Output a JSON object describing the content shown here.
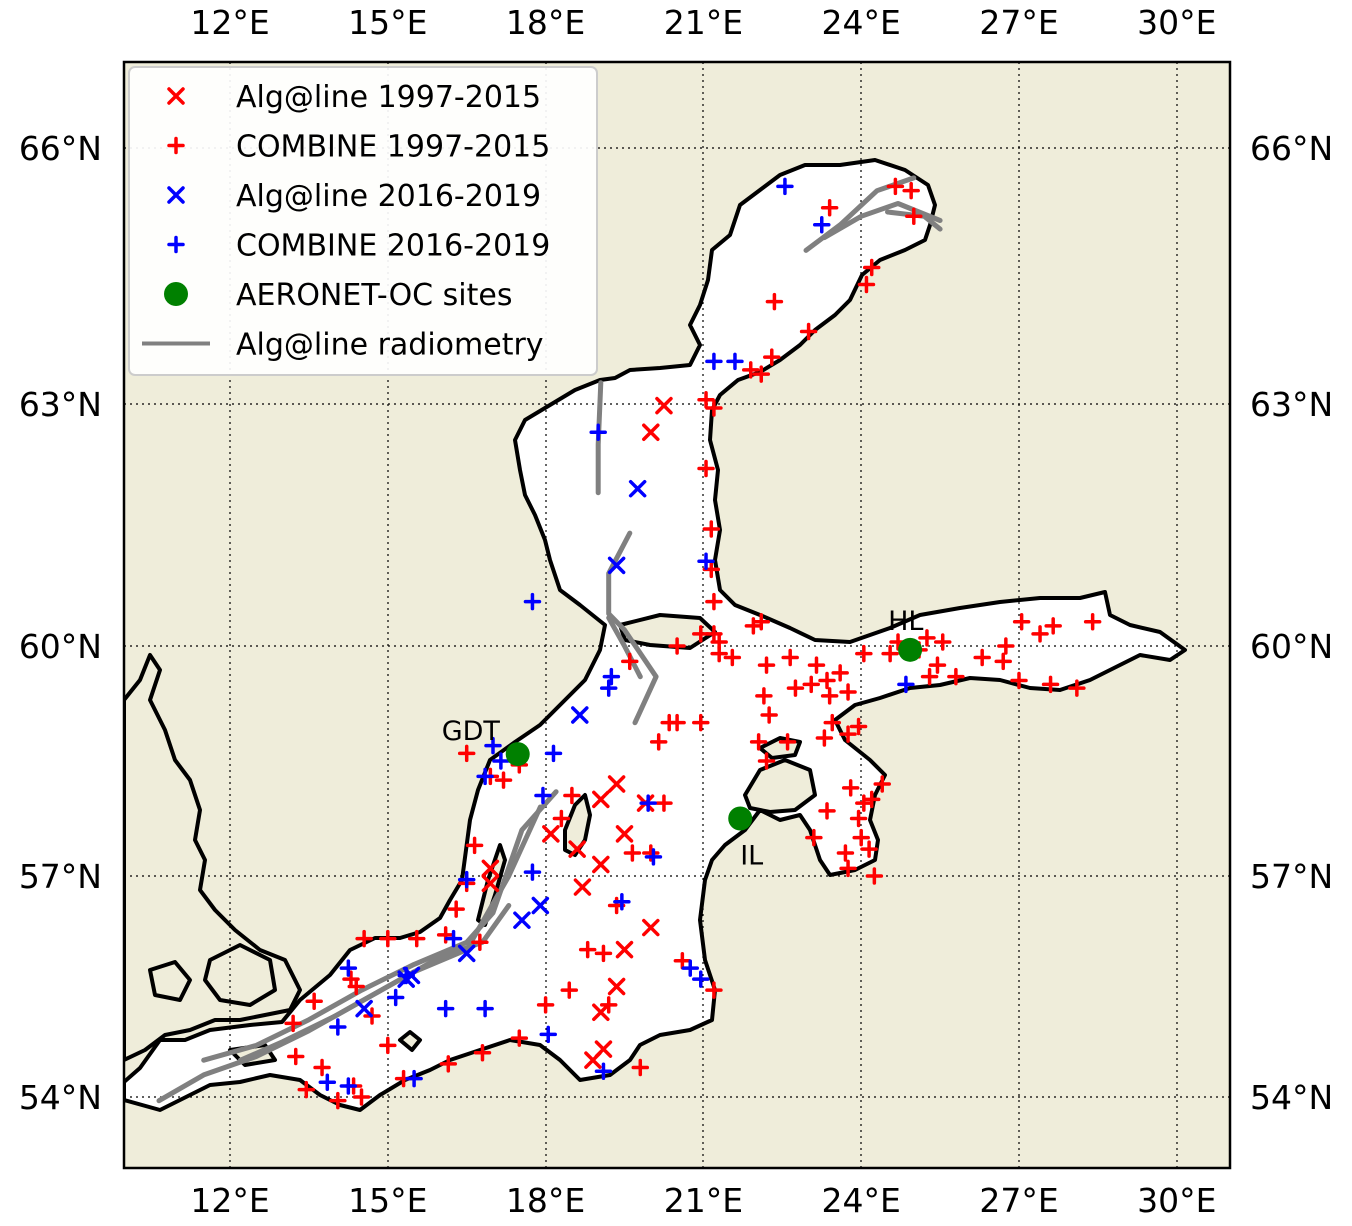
{
  "map": {
    "lon_range": [
      10.0,
      31.0
    ],
    "lat_range": [
      53.0,
      67.0
    ],
    "background_land_color": "#efedda",
    "water_color": "#ffffff",
    "coastline_color": "#000000",
    "grid": "dotted",
    "lon_ticks": [
      {
        "value": 12,
        "label": "12°E"
      },
      {
        "value": 15,
        "label": "15°E"
      },
      {
        "value": 18,
        "label": "18°E"
      },
      {
        "value": 21,
        "label": "21°E"
      },
      {
        "value": 24,
        "label": "24°E"
      },
      {
        "value": 27,
        "label": "27°E"
      },
      {
        "value": 30,
        "label": "30°E"
      }
    ],
    "lat_ticks": [
      {
        "value": 66,
        "label": "66°N"
      },
      {
        "value": 63,
        "label": "63°N"
      },
      {
        "value": 60,
        "label": "60°N"
      },
      {
        "value": 57,
        "label": "57°N"
      },
      {
        "value": 54,
        "label": "54°N"
      }
    ]
  },
  "legend": {
    "placement": "top-left",
    "entries": [
      {
        "label": "Alg@line 1997-2015",
        "marker": "x",
        "color": "#ff0000"
      },
      {
        "label": "COMBINE 1997-2015",
        "marker": "+",
        "color": "#ff0000"
      },
      {
        "label": "Alg@line 2016-2019",
        "marker": "x",
        "color": "#0000ff"
      },
      {
        "label": "COMBINE 2016-2019",
        "marker": "+",
        "color": "#0000ff"
      },
      {
        "label": "AERONET-OC sites",
        "marker": "circle",
        "color": "#008000"
      },
      {
        "label": "Alg@line radiometry",
        "marker": "line",
        "color": "#808080"
      }
    ]
  },
  "sites": [
    {
      "name": "HL",
      "lon": 24.93,
      "lat": 59.95
    },
    {
      "name": "GDT",
      "lon": 17.47,
      "lat": 58.59
    },
    {
      "name": "IL",
      "lon": 21.7,
      "lat": 57.75
    }
  ],
  "chart_data": {
    "type": "scatter",
    "series": [
      {
        "name": "Alg@line 1997-2015",
        "marker": "x",
        "color": "#ff0000",
        "points": [
          [
            20.25,
            62.98
          ],
          [
            20.0,
            62.65
          ],
          [
            19.05,
            58.0
          ],
          [
            19.35,
            58.2
          ],
          [
            18.1,
            57.55
          ],
          [
            19.5,
            57.55
          ],
          [
            18.6,
            57.35
          ],
          [
            19.05,
            57.15
          ],
          [
            18.7,
            56.85
          ],
          [
            19.9,
            57.95
          ],
          [
            20.0,
            56.3
          ],
          [
            19.5,
            56.0
          ],
          [
            19.35,
            55.5
          ],
          [
            19.05,
            55.15
          ],
          [
            19.1,
            54.65
          ],
          [
            18.9,
            54.5
          ],
          [
            16.95,
            57.1
          ],
          [
            16.95,
            56.9
          ]
        ]
      },
      {
        "name": "COMBINE 1997-2015",
        "marker": "+",
        "color": "#ff0000",
        "points": [
          [
            23.4,
            65.3
          ],
          [
            24.65,
            65.55
          ],
          [
            24.95,
            65.5
          ],
          [
            25.0,
            65.2
          ],
          [
            24.1,
            64.4
          ],
          [
            24.2,
            64.6
          ],
          [
            22.35,
            64.2
          ],
          [
            23.0,
            63.85
          ],
          [
            22.3,
            63.55
          ],
          [
            21.9,
            63.4
          ],
          [
            22.1,
            63.35
          ],
          [
            21.05,
            63.05
          ],
          [
            21.2,
            62.95
          ],
          [
            21.05,
            62.2
          ],
          [
            21.15,
            61.45
          ],
          [
            21.15,
            60.95
          ],
          [
            21.2,
            60.55
          ],
          [
            20.95,
            60.15
          ],
          [
            21.2,
            60.15
          ],
          [
            20.5,
            60.0
          ],
          [
            21.95,
            60.25
          ],
          [
            22.1,
            60.3
          ],
          [
            21.55,
            59.85
          ],
          [
            21.3,
            60.05
          ],
          [
            22.65,
            59.85
          ],
          [
            23.15,
            59.75
          ],
          [
            23.6,
            59.65
          ],
          [
            23.35,
            59.55
          ],
          [
            23.05,
            59.5
          ],
          [
            22.75,
            59.45
          ],
          [
            23.75,
            59.4
          ],
          [
            23.4,
            59.35
          ],
          [
            22.15,
            59.35
          ],
          [
            22.25,
            59.1
          ],
          [
            23.45,
            59.0
          ],
          [
            23.95,
            58.95
          ],
          [
            22.05,
            58.75
          ],
          [
            22.2,
            58.5
          ],
          [
            22.6,
            58.75
          ],
          [
            23.3,
            58.8
          ],
          [
            23.75,
            58.85
          ],
          [
            24.4,
            58.2
          ],
          [
            24.2,
            58.0
          ],
          [
            24.05,
            57.95
          ],
          [
            23.95,
            57.75
          ],
          [
            24.0,
            57.5
          ],
          [
            23.7,
            57.3
          ],
          [
            24.15,
            57.35
          ],
          [
            23.75,
            57.1
          ],
          [
            24.25,
            57.0
          ],
          [
            23.1,
            57.5
          ],
          [
            23.35,
            57.85
          ],
          [
            23.8,
            58.15
          ],
          [
            24.55,
            59.9
          ],
          [
            24.7,
            60.05
          ],
          [
            25.25,
            60.1
          ],
          [
            25.45,
            59.75
          ],
          [
            25.3,
            59.6
          ],
          [
            25.8,
            59.6
          ],
          [
            26.3,
            59.85
          ],
          [
            26.75,
            60.0
          ],
          [
            27.05,
            60.3
          ],
          [
            27.4,
            60.15
          ],
          [
            27.65,
            60.25
          ],
          [
            28.4,
            60.3
          ],
          [
            26.7,
            59.8
          ],
          [
            27.0,
            59.55
          ],
          [
            27.6,
            59.5
          ],
          [
            28.1,
            59.45
          ],
          [
            25.1,
            59.95
          ],
          [
            25.55,
            60.05
          ],
          [
            24.05,
            59.9
          ],
          [
            20.35,
            59.0
          ],
          [
            20.15,
            58.75
          ],
          [
            20.95,
            59.0
          ],
          [
            20.25,
            57.95
          ],
          [
            19.65,
            57.3
          ],
          [
            19.35,
            56.6
          ],
          [
            18.8,
            56.0
          ],
          [
            19.1,
            55.95
          ],
          [
            20.6,
            55.85
          ],
          [
            21.2,
            55.45
          ],
          [
            18.45,
            55.45
          ],
          [
            18.0,
            55.25
          ],
          [
            17.5,
            54.8
          ],
          [
            16.8,
            54.6
          ],
          [
            16.15,
            54.45
          ],
          [
            15.3,
            54.25
          ],
          [
            14.35,
            54.15
          ],
          [
            13.75,
            54.4
          ],
          [
            13.25,
            54.55
          ],
          [
            13.45,
            54.1
          ],
          [
            14.05,
            53.95
          ],
          [
            14.5,
            54.0
          ],
          [
            15.0,
            54.7
          ],
          [
            14.7,
            55.1
          ],
          [
            13.6,
            55.3
          ],
          [
            14.3,
            55.6
          ],
          [
            14.4,
            55.5
          ],
          [
            14.55,
            56.15
          ],
          [
            15.55,
            56.15
          ],
          [
            16.1,
            56.2
          ],
          [
            16.3,
            56.55
          ],
          [
            16.75,
            56.1
          ],
          [
            16.5,
            56.9
          ],
          [
            16.65,
            57.4
          ],
          [
            17.2,
            58.25
          ],
          [
            17.5,
            58.45
          ],
          [
            16.5,
            58.6
          ],
          [
            16.95,
            58.3
          ],
          [
            19.6,
            59.8
          ],
          [
            20.5,
            59.0
          ],
          [
            18.5,
            58.05
          ],
          [
            18.3,
            57.75
          ],
          [
            21.3,
            59.9
          ],
          [
            22.2,
            59.75
          ],
          [
            15.0,
            56.15
          ],
          [
            13.2,
            55.0
          ],
          [
            20.0,
            57.3
          ],
          [
            19.2,
            55.25
          ],
          [
            19.8,
            54.4
          ]
        ]
      },
      {
        "name": "Alg@line 2016-2019",
        "marker": "x",
        "color": "#0000ff",
        "points": [
          [
            19.75,
            61.95
          ],
          [
            19.35,
            61.0
          ],
          [
            18.65,
            59.1
          ],
          [
            16.5,
            55.95
          ],
          [
            17.55,
            56.4
          ],
          [
            17.9,
            56.6
          ],
          [
            15.35,
            55.6
          ],
          [
            15.45,
            55.65
          ],
          [
            14.55,
            55.2
          ]
        ]
      },
      {
        "name": "COMBINE 2016-2019",
        "marker": "+",
        "color": "#0000ff",
        "points": [
          [
            22.55,
            65.55
          ],
          [
            23.25,
            65.1
          ],
          [
            21.2,
            63.5
          ],
          [
            21.6,
            63.5
          ],
          [
            19.0,
            62.65
          ],
          [
            21.05,
            61.05
          ],
          [
            17.75,
            60.55
          ],
          [
            19.25,
            59.6
          ],
          [
            19.2,
            59.45
          ],
          [
            17.0,
            58.7
          ],
          [
            17.15,
            58.5
          ],
          [
            16.85,
            58.3
          ],
          [
            18.15,
            58.6
          ],
          [
            17.95,
            58.05
          ],
          [
            19.95,
            57.95
          ],
          [
            20.05,
            57.25
          ],
          [
            17.75,
            57.05
          ],
          [
            16.5,
            56.95
          ],
          [
            19.45,
            56.65
          ],
          [
            20.75,
            55.75
          ],
          [
            20.95,
            55.6
          ],
          [
            16.25,
            56.15
          ],
          [
            15.35,
            55.65
          ],
          [
            15.15,
            55.35
          ],
          [
            16.1,
            55.2
          ],
          [
            16.85,
            55.2
          ],
          [
            15.5,
            54.25
          ],
          [
            14.25,
            54.15
          ],
          [
            14.25,
            55.75
          ],
          [
            13.85,
            54.2
          ],
          [
            19.1,
            54.35
          ],
          [
            14.05,
            54.95
          ],
          [
            18.05,
            54.85
          ],
          [
            24.85,
            59.5
          ]
        ]
      },
      {
        "name": "AERONET-OC sites",
        "marker": "circle",
        "color": "#008000",
        "points": [
          [
            24.93,
            59.95
          ],
          [
            17.47,
            58.59
          ],
          [
            21.7,
            57.75
          ]
        ]
      }
    ],
    "lines": [
      {
        "name": "Alg@line radiometry",
        "color": "#808080",
        "points": [
          [
            10.65,
            53.95
          ],
          [
            11.5,
            54.3
          ],
          [
            12.5,
            54.55
          ],
          [
            13.5,
            54.9
          ],
          [
            14.5,
            55.3
          ],
          [
            15.5,
            55.7
          ],
          [
            16.5,
            56.0
          ],
          [
            17.3,
            57.0
          ],
          [
            17.9,
            57.9
          ]
        ]
      },
      {
        "name": "Alg@line radiometry",
        "color": "#808080",
        "points": [
          [
            11.5,
            54.5
          ],
          [
            12.5,
            54.7
          ],
          [
            13.5,
            55.05
          ],
          [
            14.5,
            55.45
          ],
          [
            15.5,
            55.8
          ],
          [
            16.5,
            56.1
          ],
          [
            17.0,
            56.5
          ],
          [
            17.55,
            57.6
          ],
          [
            18.2,
            58.1
          ]
        ]
      },
      {
        "name": "Alg@line radiometry",
        "color": "#808080",
        "points": [
          [
            12.2,
            54.5
          ],
          [
            13.0,
            54.75
          ],
          [
            14.0,
            55.1
          ],
          [
            15.0,
            55.5
          ],
          [
            16.0,
            55.9
          ],
          [
            16.8,
            56.1
          ],
          [
            17.3,
            56.6
          ]
        ]
      },
      {
        "name": "Alg@line radiometry",
        "color": "#808080",
        "points": [
          [
            19.0,
            61.9
          ],
          [
            19.0,
            62.5
          ],
          [
            19.05,
            63.25
          ]
        ]
      },
      {
        "name": "Alg@line radiometry",
        "color": "#808080",
        "points": [
          [
            19.7,
            59.0
          ],
          [
            20.1,
            59.6
          ],
          [
            19.5,
            60.2
          ],
          [
            19.2,
            60.4
          ],
          [
            19.2,
            60.9
          ],
          [
            19.6,
            61.4
          ]
        ]
      },
      {
        "name": "Alg@line radiometry",
        "color": "#808080",
        "points": [
          [
            19.2,
            60.35
          ],
          [
            19.5,
            60.0
          ],
          [
            19.8,
            59.6
          ]
        ]
      },
      {
        "name": "Alg@line radiometry",
        "color": "#808080",
        "points": [
          [
            22.95,
            64.8
          ],
          [
            23.6,
            65.1
          ],
          [
            24.3,
            65.5
          ],
          [
            25.0,
            65.65
          ]
        ]
      },
      {
        "name": "Alg@line radiometry",
        "color": "#808080",
        "points": [
          [
            23.3,
            64.95
          ],
          [
            24.0,
            65.2
          ],
          [
            24.7,
            65.35
          ],
          [
            25.5,
            65.15
          ]
        ]
      },
      {
        "name": "Alg@line radiometry",
        "color": "#808080",
        "points": [
          [
            24.5,
            65.25
          ],
          [
            25.2,
            65.2
          ],
          [
            25.5,
            65.05
          ]
        ]
      }
    ],
    "xlabel": "",
    "ylabel": ""
  }
}
